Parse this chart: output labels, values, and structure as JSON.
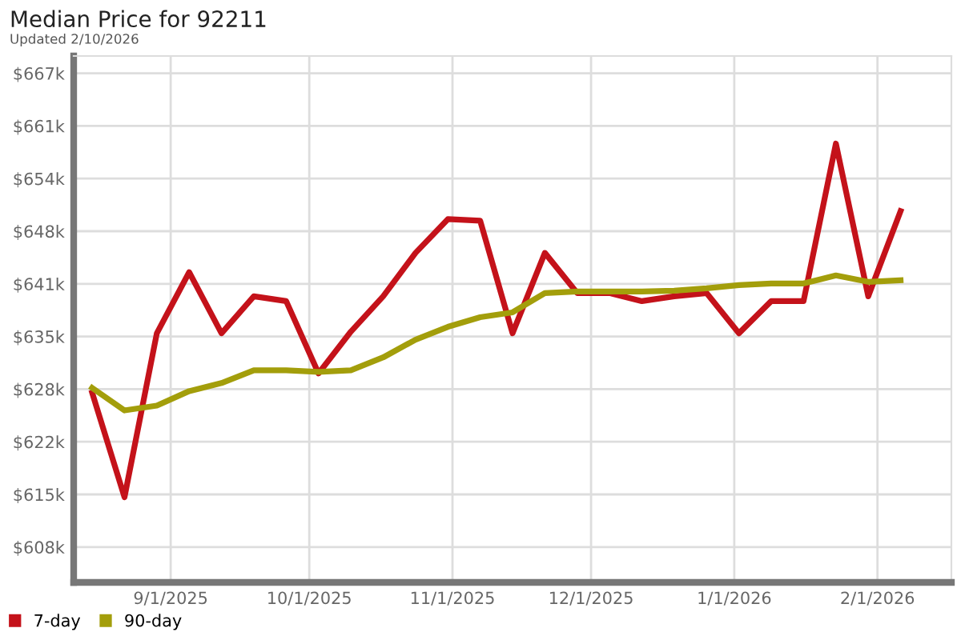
{
  "chart_data": {
    "type": "line",
    "title": "Median Price for 92211",
    "subtitle": "Updated 2/10/2026",
    "x": [
      "2025-08-15",
      "2025-08-22",
      "2025-08-29",
      "2025-09-05",
      "2025-09-12",
      "2025-09-19",
      "2025-09-26",
      "2025-10-03",
      "2025-10-10",
      "2025-10-17",
      "2025-10-24",
      "2025-10-31",
      "2025-11-07",
      "2025-11-14",
      "2025-11-21",
      "2025-11-28",
      "2025-12-05",
      "2025-12-12",
      "2025-12-19",
      "2025-12-26",
      "2026-01-02",
      "2026-01-09",
      "2026-01-16",
      "2026-01-23",
      "2026-01-30",
      "2026-02-06"
    ],
    "series": [
      {
        "name": "7-day",
        "color": "#c4121a",
        "values": [
          627.6,
          614.6,
          635.0,
          642.6,
          635.0,
          639.6,
          639.0,
          630.0,
          635.2,
          639.6,
          645.0,
          649.2,
          649.0,
          635.0,
          645.0,
          640.0,
          640.0,
          639.0,
          639.6,
          640.0,
          635.0,
          639.0,
          639.0,
          658.6,
          639.6,
          650.2
        ]
      },
      {
        "name": "90-day",
        "color": "#a39e0b",
        "values": [
          628.2,
          625.4,
          626.0,
          627.8,
          628.8,
          630.4,
          630.4,
          630.2,
          630.4,
          632.0,
          634.2,
          635.8,
          637.0,
          637.6,
          640.0,
          640.2,
          640.2,
          640.2,
          640.3,
          640.6,
          641.0,
          641.2,
          641.2,
          642.2,
          641.4,
          641.6
        ]
      }
    ],
    "xlim": [
      "2025-08-11",
      "2026-02-17"
    ],
    "xticks": [
      {
        "value": "2025-09-01",
        "label": "9/1/2025"
      },
      {
        "value": "2025-10-01",
        "label": "10/1/2025"
      },
      {
        "value": "2025-11-01",
        "label": "11/1/2025"
      },
      {
        "value": "2025-12-01",
        "label": "12/1/2025"
      },
      {
        "value": "2026-01-01",
        "label": "1/1/2026"
      },
      {
        "value": "2026-02-01",
        "label": "2/1/2026"
      }
    ],
    "ylim": [
      604.0,
      669.5
    ],
    "yticks": [
      {
        "value": 608.4,
        "label": "$608k"
      },
      {
        "value": 614.95,
        "label": "$615k"
      },
      {
        "value": 621.5,
        "label": "$622k"
      },
      {
        "value": 628.05,
        "label": "$628k"
      },
      {
        "value": 634.6,
        "label": "$635k"
      },
      {
        "value": 641.15,
        "label": "$641k"
      },
      {
        "value": 647.7,
        "label": "$648k"
      },
      {
        "value": 654.25,
        "label": "$654k"
      },
      {
        "value": 660.8,
        "label": "$661k"
      },
      {
        "value": 667.35,
        "label": "$667k"
      }
    ],
    "grid": true,
    "legend": "bottom left",
    "marker": "none",
    "line_style": "solid"
  }
}
